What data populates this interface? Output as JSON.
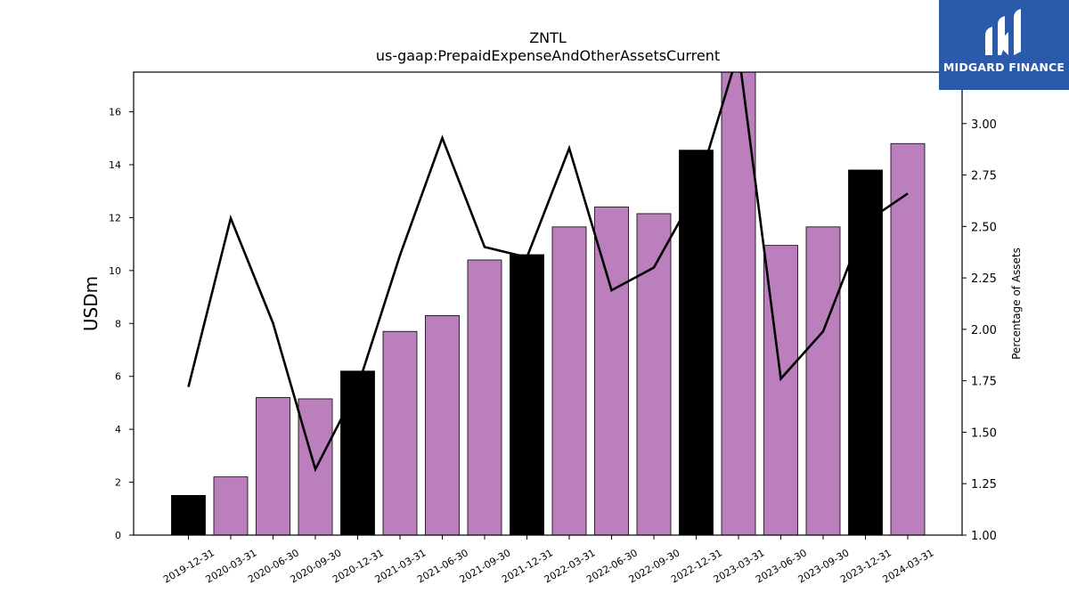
{
  "chart_data": {
    "type": "bar",
    "title": "ZNTL",
    "subtitle": "us-gaap:PrepaidExpenseAndOtherAssetsCurrent",
    "ylabel": "USDm",
    "y2label": "Percentage of Assets",
    "ylim": [
      0,
      17.5
    ],
    "y2lim": [
      1.0,
      3.25
    ],
    "yticks": [
      "0",
      "2",
      "4",
      "6",
      "8",
      "10",
      "12",
      "14",
      "16"
    ],
    "y2ticks": [
      "1.00",
      "1.25",
      "1.50",
      "1.75",
      "2.00",
      "2.25",
      "2.50",
      "2.75",
      "3.00"
    ],
    "categories": [
      "2019-12-31",
      "2020-03-31",
      "2020-06-30",
      "2020-09-30",
      "2020-12-31",
      "2021-03-31",
      "2021-06-30",
      "2021-09-30",
      "2021-12-31",
      "2022-03-31",
      "2022-06-30",
      "2022-09-30",
      "2022-12-31",
      "2023-03-31",
      "2023-06-30",
      "2023-09-30",
      "2023-12-31",
      "2024-03-31"
    ],
    "series": [
      {
        "type": "bar",
        "values": [
          1.5,
          2.2,
          5.2,
          5.15,
          6.2,
          7.7,
          8.3,
          10.4,
          10.6,
          11.65,
          12.4,
          12.15,
          14.55,
          17.6,
          10.95,
          11.65,
          13.8,
          14.8
        ],
        "colors": [
          "#000000",
          "#bb7fbd",
          "#bb7fbd",
          "#bb7fbd",
          "#000000",
          "#bb7fbd",
          "#bb7fbd",
          "#bb7fbd",
          "#000000",
          "#bb7fbd",
          "#bb7fbd",
          "#bb7fbd",
          "#000000",
          "#bb7fbd",
          "#bb7fbd",
          "#bb7fbd",
          "#000000",
          "#bb7fbd"
        ]
      },
      {
        "type": "line",
        "axis": "right",
        "color": "#000000",
        "values": [
          1.72,
          2.54,
          2.03,
          1.32,
          1.72,
          2.36,
          2.93,
          2.4,
          2.35,
          2.88,
          2.19,
          2.3,
          2.67,
          3.35,
          1.76,
          1.99,
          2.52,
          2.66
        ]
      }
    ]
  },
  "logo": {
    "text": "MIDGARD FINANCE",
    "color": "#2c5aab"
  }
}
